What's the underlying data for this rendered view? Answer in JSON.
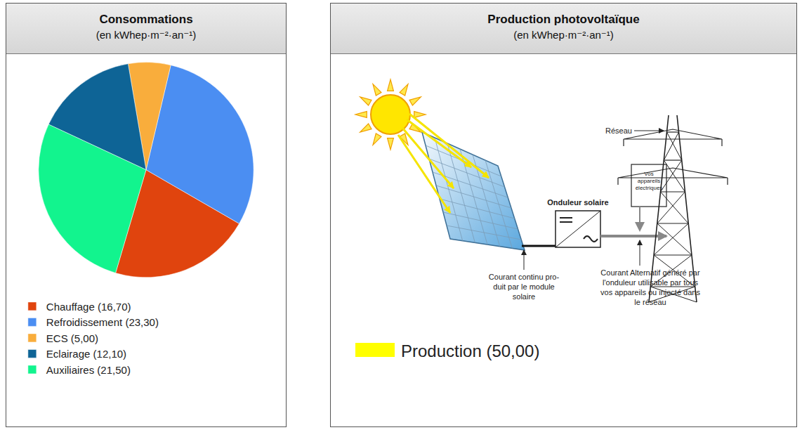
{
  "chart_data": {
    "type": "pie",
    "title": "Consommations",
    "subtitle": "(en kWhep·m⁻²·an⁻¹)",
    "categories": [
      "Chauffage (16,70)",
      "Refroidissement (23,30)",
      "ECS (5,00)",
      "Eclairage (12,10)",
      "Auxiliaires (21,50)"
    ],
    "values": [
      16.7,
      23.3,
      5.0,
      12.1,
      21.5
    ],
    "colors": [
      "#e0440e",
      "#4b8ef2",
      "#f9ad3c",
      "#0e6496",
      "#12f48e"
    ],
    "legend": "bottom left"
  },
  "diagram": {
    "title": "Production photovoltaïque",
    "subtitle": "(en kWhep·m⁻²·an⁻¹)",
    "labels": {
      "grid": "Réseau",
      "inverter": "Onduleur solaire",
      "appliances": [
        "Vos",
        "appareils",
        "électriques"
      ],
      "dc_current": [
        "Courant continu pro-",
        "duit par le module",
        "solaire"
      ],
      "ac_current": [
        "Courant Alternatif généré par",
        "l'onduleur utilisable par tous",
        "vos appareils ou injecté dans",
        "le réseau"
      ]
    },
    "legend": {
      "label": "Production (50,00)",
      "color": "#ffff00"
    }
  }
}
